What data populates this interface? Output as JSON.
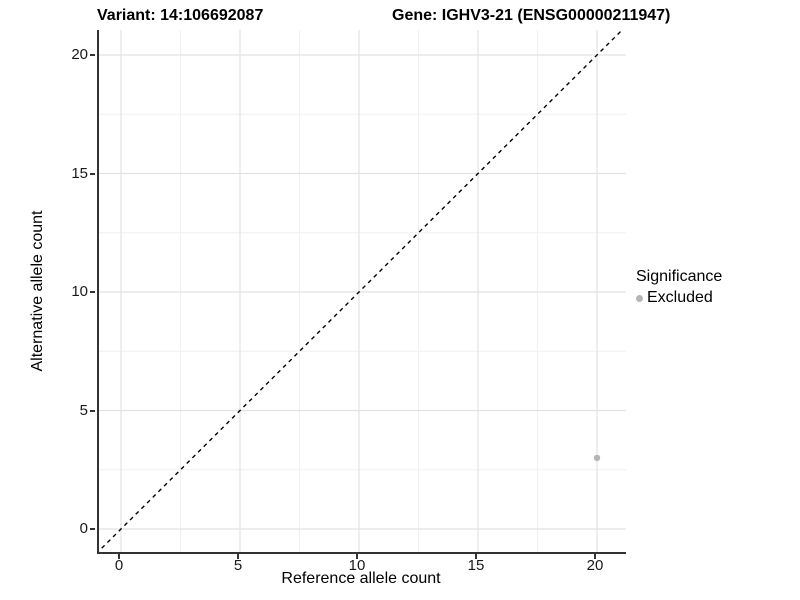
{
  "legend": {
    "title": "Significance",
    "items": [
      {
        "label": "Excluded",
        "color": "#b5b5b5"
      }
    ]
  },
  "chart_data": {
    "type": "scatter",
    "title_left": "Variant: 14:106692087",
    "title_right": "Gene: IGHV3-21 (ENSG00000211947)",
    "xlabel": "Reference allele count",
    "ylabel": "Alternative allele count",
    "xlim": [
      -0.95,
      21.1
    ],
    "ylim": [
      -0.97,
      21.05
    ],
    "x_ticks": [
      0,
      5,
      10,
      15,
      20
    ],
    "y_ticks": [
      0,
      5,
      10,
      15,
      20
    ],
    "grid": "major and minor, light gray on white",
    "legend_position": "right",
    "series": [
      {
        "name": "Excluded",
        "color": "#b5b5b5",
        "points": [
          {
            "x": 20,
            "y": 3
          }
        ]
      }
    ],
    "annotations": [
      {
        "type": "abline",
        "slope": 1,
        "intercept": 0,
        "style": "dashed",
        "color": "#000000"
      }
    ],
    "colors": {
      "axis_line": "#333333",
      "major_grid": "#e2e2e2",
      "minor_grid": "#f0f0f0",
      "tick_label": "#1a1a1a"
    }
  }
}
